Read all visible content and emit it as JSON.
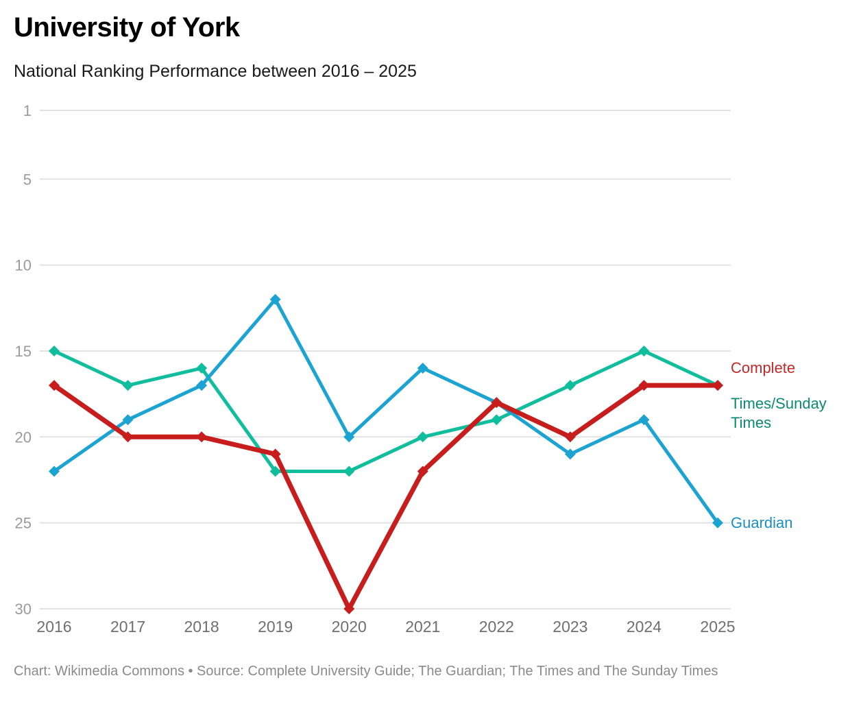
{
  "header": {
    "title": "University of York",
    "subtitle": "National Ranking Performance between 2016 – 2025"
  },
  "footer": {
    "text": "Chart: Wikimedia Commons • Source: Complete University Guide; The Guardian; The Times and The Sunday Times"
  },
  "chart_data": {
    "type": "line",
    "title": "University of York",
    "subtitle": "National Ranking Performance between 2016 – 2025",
    "xlabel": "",
    "ylabel": "",
    "x": [
      "2016",
      "2017",
      "2018",
      "2019",
      "2020",
      "2021",
      "2022",
      "2023",
      "2024",
      "2025"
    ],
    "yticks": [
      1,
      5,
      10,
      15,
      20,
      25,
      30
    ],
    "ylim": [
      1,
      30
    ],
    "y_inverted": true,
    "grid": true,
    "legend": "inline-right",
    "series": [
      {
        "name": "Times/Sunday Times",
        "label_lines": [
          "Times/Sunday",
          "Times"
        ],
        "color": "#10bd9c",
        "label_color": "#0b8a6f",
        "values": [
          15,
          17,
          16,
          22,
          22,
          20,
          19,
          17,
          15,
          17
        ]
      },
      {
        "name": "Guardian",
        "label_lines": [
          "Guardian"
        ],
        "color": "#1ba3d1",
        "label_color": "#1a8fbf",
        "values": [
          22,
          19,
          17,
          12,
          20,
          16,
          18,
          21,
          19,
          25
        ]
      },
      {
        "name": "Complete",
        "label_lines": [
          "Complete"
        ],
        "color": "#c81d1d",
        "label_color": "#c62828",
        "values": [
          17,
          20,
          20,
          21,
          30,
          22,
          18,
          20,
          17,
          17
        ]
      }
    ]
  }
}
